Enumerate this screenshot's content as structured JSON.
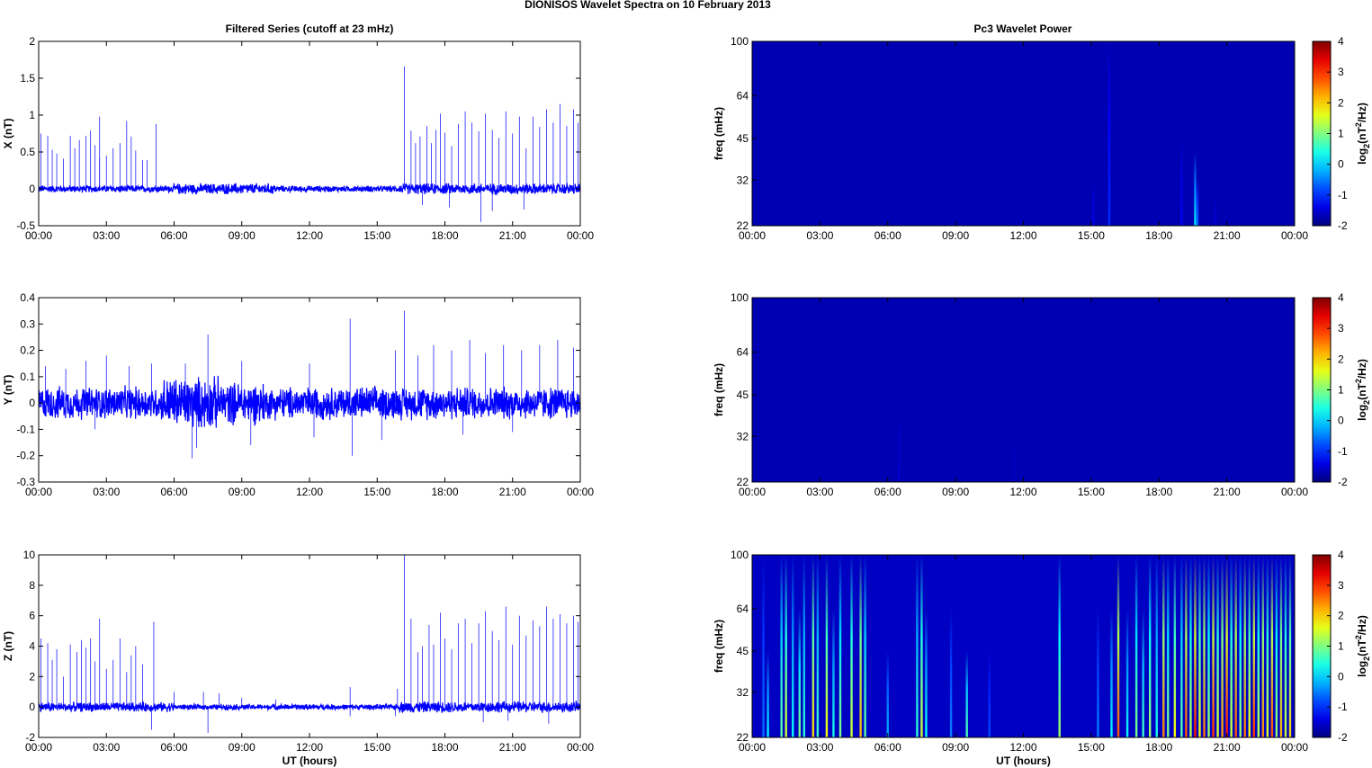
{
  "figure": {
    "title": "DIONISOS Wavelet Spectra on 10 February  2013",
    "left_title": "Filtered Series (cutoff at 23 mHz)",
    "right_title": "Pc3 Wavelet Power",
    "xlabel": "UT (hours)"
  },
  "colors": {
    "series_line": "#0000ff",
    "heatmap_background": "#00008f",
    "axes": "#000000"
  },
  "chart_data": [
    {
      "type": "line",
      "ylabel": "X (nT)",
      "xlabel": "",
      "x_ticks": [
        "00:00",
        "03:00",
        "06:00",
        "09:00",
        "12:00",
        "15:00",
        "18:00",
        "21:00",
        "00:00"
      ],
      "xlim_hours": [
        0,
        24
      ],
      "ylim": [
        -0.5,
        2
      ],
      "y_ticks": [
        -0.5,
        0,
        0.5,
        1,
        1.5,
        2
      ],
      "y_tick_labels": [
        "-0.5",
        "0",
        "0.5",
        "1",
        "1.5",
        "2"
      ],
      "noise_band": [
        {
          "t": [
            0,
            6
          ],
          "amp": 0.04
        },
        {
          "t": [
            6,
            10.5
          ],
          "amp": 0.06
        },
        {
          "t": [
            10.5,
            16
          ],
          "amp": 0.035
        },
        {
          "t": [
            16,
            24
          ],
          "amp": 0.06
        }
      ],
      "spikes": [
        [
          0.1,
          0.75
        ],
        [
          0.4,
          0.72
        ],
        [
          0.6,
          0.53
        ],
        [
          0.8,
          0.48
        ],
        [
          1.1,
          0.41
        ],
        [
          1.4,
          0.72
        ],
        [
          1.6,
          0.55
        ],
        [
          1.8,
          0.66
        ],
        [
          2.1,
          0.72
        ],
        [
          2.3,
          0.79
        ],
        [
          2.5,
          0.59
        ],
        [
          2.7,
          0.42
        ],
        [
          2.7,
          0.98
        ],
        [
          3.0,
          0.45
        ],
        [
          3.3,
          0.55
        ],
        [
          3.6,
          0.62
        ],
        [
          3.9,
          0.92
        ],
        [
          4.1,
          0.71
        ],
        [
          4.3,
          0.52
        ],
        [
          4.6,
          0.39
        ],
        [
          4.8,
          0.39
        ],
        [
          5.2,
          0.88
        ],
        [
          16.2,
          1.66
        ],
        [
          16.5,
          0.79
        ],
        [
          16.7,
          0.62
        ],
        [
          16.9,
          0.71
        ],
        [
          17.2,
          0.85
        ],
        [
          17.4,
          0.62
        ],
        [
          17.6,
          0.8
        ],
        [
          17.8,
          1.02
        ],
        [
          18.0,
          0.76
        ],
        [
          18.3,
          0.58
        ],
        [
          18.6,
          0.88
        ],
        [
          18.9,
          1.05
        ],
        [
          19.2,
          0.9
        ],
        [
          19.5,
          0.78
        ],
        [
          19.8,
          1.02
        ],
        [
          20.1,
          0.8
        ],
        [
          20.4,
          0.69
        ],
        [
          20.7,
          1.05
        ],
        [
          21.0,
          0.75
        ],
        [
          21.3,
          0.98
        ],
        [
          21.6,
          0.55
        ],
        [
          21.9,
          0.98
        ],
        [
          22.2,
          0.84
        ],
        [
          22.5,
          1.08
        ],
        [
          22.8,
          0.9
        ],
        [
          23.1,
          1.15
        ],
        [
          23.4,
          0.85
        ],
        [
          23.7,
          1.08
        ],
        [
          23.9,
          0.9
        ]
      ],
      "neg_spikes": [
        [
          19.6,
          -0.45
        ],
        [
          20.1,
          -0.3
        ],
        [
          18.2,
          -0.25
        ],
        [
          21.5,
          -0.28
        ],
        [
          17.0,
          -0.22
        ]
      ]
    },
    {
      "type": "line",
      "ylabel": "Y (nT)",
      "xlabel": "",
      "x_ticks": [
        "00:00",
        "03:00",
        "06:00",
        "09:00",
        "12:00",
        "15:00",
        "18:00",
        "21:00",
        "00:00"
      ],
      "xlim_hours": [
        0,
        24
      ],
      "ylim": [
        -0.3,
        0.4
      ],
      "y_ticks": [
        -0.3,
        -0.2,
        -0.1,
        0,
        0.1,
        0.2,
        0.3,
        0.4
      ],
      "y_tick_labels": [
        "-0.3",
        "-0.2",
        "-0.1",
        "0",
        "0.1",
        "0.2",
        "0.3",
        "0.4"
      ],
      "noise_band": [
        {
          "t": [
            0,
            5.5
          ],
          "amp": 0.05
        },
        {
          "t": [
            5.5,
            8
          ],
          "amp": 0.08
        },
        {
          "t": [
            8,
            10
          ],
          "amp": 0.065
        },
        {
          "t": [
            10,
            24
          ],
          "amp": 0.05
        }
      ],
      "spikes": [
        [
          0.3,
          0.14
        ],
        [
          1.2,
          0.13
        ],
        [
          2.1,
          0.16
        ],
        [
          3.0,
          0.18
        ],
        [
          4.0,
          0.14
        ],
        [
          5.0,
          0.15
        ],
        [
          6.5,
          0.15
        ],
        [
          7.5,
          0.26
        ],
        [
          9.0,
          0.16
        ],
        [
          12.0,
          0.15
        ],
        [
          13.8,
          0.32
        ],
        [
          15.8,
          0.2
        ],
        [
          16.2,
          0.35
        ],
        [
          16.8,
          0.18
        ],
        [
          17.5,
          0.22
        ],
        [
          18.3,
          0.2
        ],
        [
          19.1,
          0.24
        ],
        [
          19.8,
          0.19
        ],
        [
          20.6,
          0.22
        ],
        [
          21.4,
          0.2
        ],
        [
          22.2,
          0.22
        ],
        [
          23.0,
          0.24
        ],
        [
          23.7,
          0.21
        ]
      ],
      "neg_spikes": [
        [
          6.8,
          -0.21
        ],
        [
          7.0,
          -0.17
        ],
        [
          9.4,
          -0.16
        ],
        [
          12.2,
          -0.13
        ],
        [
          13.9,
          -0.2
        ],
        [
          15.2,
          -0.14
        ],
        [
          2.5,
          -0.1
        ],
        [
          18.8,
          -0.12
        ],
        [
          21.0,
          -0.11
        ]
      ]
    },
    {
      "type": "line",
      "ylabel": "Z (nT)",
      "xlabel": "UT (hours)",
      "x_ticks": [
        "00:00",
        "03:00",
        "06:00",
        "09:00",
        "12:00",
        "15:00",
        "18:00",
        "21:00",
        "00:00"
      ],
      "xlim_hours": [
        0,
        24
      ],
      "ylim": [
        -2,
        10
      ],
      "y_ticks": [
        -2,
        0,
        2,
        4,
        6,
        8,
        10
      ],
      "y_tick_labels": [
        "-2",
        "0",
        "2",
        "4",
        "6",
        "8",
        "10"
      ],
      "noise_band": [
        {
          "t": [
            0,
            6
          ],
          "amp": 0.25
        },
        {
          "t": [
            6,
            16
          ],
          "amp": 0.15
        },
        {
          "t": [
            16,
            24
          ],
          "amp": 0.3
        }
      ],
      "spikes": [
        [
          0.1,
          4.5
        ],
        [
          0.4,
          4.2
        ],
        [
          0.6,
          3.1
        ],
        [
          0.8,
          3.8
        ],
        [
          1.1,
          2.0
        ],
        [
          1.4,
          4.1
        ],
        [
          1.7,
          3.6
        ],
        [
          1.9,
          4.4
        ],
        [
          2.1,
          3.9
        ],
        [
          2.3,
          4.5
        ],
        [
          2.5,
          3.0
        ],
        [
          2.7,
          5.8
        ],
        [
          3.0,
          2.5
        ],
        [
          3.3,
          3.1
        ],
        [
          3.6,
          4.5
        ],
        [
          3.9,
          2.3
        ],
        [
          4.1,
          3.4
        ],
        [
          4.3,
          4.0
        ],
        [
          4.6,
          2.8
        ],
        [
          5.1,
          5.6
        ],
        [
          6.0,
          1.0
        ],
        [
          7.3,
          1.0
        ],
        [
          8.0,
          0.9
        ],
        [
          9.0,
          0.6
        ],
        [
          10.5,
          0.5
        ],
        [
          13.8,
          1.3
        ],
        [
          15.9,
          1.2
        ],
        [
          16.2,
          10.0
        ],
        [
          16.5,
          5.8
        ],
        [
          16.8,
          3.6
        ],
        [
          17.0,
          4.0
        ],
        [
          17.3,
          5.4
        ],
        [
          17.5,
          4.1
        ],
        [
          17.8,
          6.2
        ],
        [
          18.0,
          4.5
        ],
        [
          18.3,
          3.8
        ],
        [
          18.6,
          5.5
        ],
        [
          18.9,
          5.8
        ],
        [
          19.2,
          4.2
        ],
        [
          19.5,
          5.5
        ],
        [
          19.8,
          6.3
        ],
        [
          20.1,
          5.0
        ],
        [
          20.4,
          4.4
        ],
        [
          20.7,
          6.6
        ],
        [
          21.0,
          4.1
        ],
        [
          21.3,
          6.0
        ],
        [
          21.6,
          4.7
        ],
        [
          21.9,
          5.7
        ],
        [
          22.2,
          5.3
        ],
        [
          22.5,
          6.6
        ],
        [
          22.8,
          5.8
        ],
        [
          23.1,
          6.1
        ],
        [
          23.4,
          5.5
        ],
        [
          23.7,
          6.0
        ],
        [
          23.9,
          5.6
        ]
      ],
      "neg_spikes": [
        [
          5.0,
          -1.5
        ],
        [
          7.5,
          -1.7
        ],
        [
          13.8,
          -0.6
        ],
        [
          15.8,
          -0.6
        ],
        [
          19.7,
          -1.0
        ],
        [
          20.8,
          -0.9
        ],
        [
          22.6,
          -1.1
        ]
      ]
    },
    {
      "type": "heatmap",
      "ylabel": "freq (mHz)",
      "xlabel": "",
      "x_ticks": [
        "00:00",
        "03:00",
        "06:00",
        "09:00",
        "12:00",
        "15:00",
        "18:00",
        "21:00",
        "00:00"
      ],
      "xlim_hours": [
        0,
        24
      ],
      "y_scale": "log",
      "ylim": [
        22,
        100
      ],
      "y_ticks": [
        22,
        32,
        45,
        64,
        100
      ],
      "y_tick_labels": [
        "22",
        "32",
        "45",
        "64",
        "100"
      ],
      "colorbar": {
        "label": "log2(nT2/Hz)",
        "label_main": "log",
        "label_sub": "2",
        "label_rest_a": "(nT",
        "label_sup": "2",
        "label_rest_b": "/Hz)",
        "ticks": [
          -2,
          -1,
          0,
          1,
          2,
          3,
          4
        ],
        "tick_labels": [
          "-2",
          "-1",
          "0",
          "1",
          "2",
          "3",
          "4"
        ],
        "range": [
          -2,
          4
        ]
      },
      "background_value": -1.7,
      "streaks": [
        [
          15.1,
          -1.4,
          32
        ],
        [
          15.8,
          -1.0,
          100
        ],
        [
          19.0,
          -1.3,
          45
        ],
        [
          19.6,
          0.1,
          40
        ],
        [
          19.7,
          -0.6,
          32
        ],
        [
          20.5,
          -1.5,
          28
        ]
      ]
    },
    {
      "type": "heatmap",
      "ylabel": "freq (mHz)",
      "xlabel": "",
      "x_ticks": [
        "00:00",
        "03:00",
        "06:00",
        "09:00",
        "12:00",
        "15:00",
        "18:00",
        "21:00",
        "00:00"
      ],
      "xlim_hours": [
        0,
        24
      ],
      "y_scale": "log",
      "ylim": [
        22,
        100
      ],
      "y_ticks": [
        22,
        32,
        45,
        64,
        100
      ],
      "y_tick_labels": [
        "22",
        "32",
        "45",
        "64",
        "100"
      ],
      "colorbar": {
        "label": "log2(nT2/Hz)",
        "label_main": "log",
        "label_sub": "2",
        "label_rest_a": "(nT",
        "label_sup": "2",
        "label_rest_b": "/Hz)",
        "ticks": [
          -2,
          -1,
          0,
          1,
          2,
          3,
          4
        ],
        "tick_labels": [
          "-2",
          "-1",
          "0",
          "1",
          "2",
          "3",
          "4"
        ],
        "range": [
          -2,
          4
        ]
      },
      "background_value": -1.7,
      "streaks": [
        [
          6.5,
          -1.55,
          40
        ],
        [
          11.6,
          -1.6,
          32
        ]
      ]
    },
    {
      "type": "heatmap",
      "ylabel": "freq (mHz)",
      "xlabel": "UT (hours)",
      "x_ticks": [
        "00:00",
        "03:00",
        "06:00",
        "09:00",
        "12:00",
        "15:00",
        "18:00",
        "21:00",
        "00:00"
      ],
      "xlim_hours": [
        0,
        24
      ],
      "y_scale": "log",
      "ylim": [
        22,
        100
      ],
      "y_ticks": [
        22,
        32,
        45,
        64,
        100
      ],
      "y_tick_labels": [
        "22",
        "32",
        "45",
        "64",
        "100"
      ],
      "colorbar": {
        "label": "log2(nT2/Hz)",
        "label_main": "log",
        "label_sub": "2",
        "label_rest_a": "(nT",
        "label_sup": "2",
        "label_rest_b": "/Hz)",
        "ticks": [
          -2,
          -1,
          0,
          1,
          2,
          3,
          4
        ],
        "tick_labels": [
          "-2",
          "-1",
          "0",
          "1",
          "2",
          "3",
          "4"
        ],
        "range": [
          -2,
          4
        ]
      },
      "background_value": -1.6,
      "streaks": [
        [
          0.5,
          -0.6,
          100
        ],
        [
          0.7,
          0.2,
          45
        ],
        [
          1.3,
          0.8,
          100
        ],
        [
          1.5,
          1.5,
          100
        ],
        [
          1.8,
          0.3,
          100
        ],
        [
          2.1,
          1.0,
          64
        ],
        [
          2.3,
          0.5,
          100
        ],
        [
          2.7,
          2.0,
          100
        ],
        [
          2.9,
          0.6,
          100
        ],
        [
          3.3,
          1.8,
          100
        ],
        [
          3.6,
          0.4,
          64
        ],
        [
          3.9,
          1.0,
          100
        ],
        [
          4.4,
          1.5,
          100
        ],
        [
          4.8,
          2.2,
          100
        ],
        [
          5.0,
          0.8,
          100
        ],
        [
          6.0,
          -0.2,
          45
        ],
        [
          7.3,
          0.5,
          100
        ],
        [
          7.5,
          1.5,
          100
        ],
        [
          7.7,
          0.3,
          64
        ],
        [
          8.8,
          -0.5,
          64
        ],
        [
          9.5,
          0.7,
          45
        ],
        [
          10.5,
          -0.8,
          45
        ],
        [
          13.6,
          1.2,
          100
        ],
        [
          15.3,
          -0.5,
          64
        ],
        [
          15.9,
          0.2,
          64
        ],
        [
          16.2,
          2.8,
          100
        ],
        [
          16.6,
          0.3,
          64
        ],
        [
          17.0,
          1.0,
          100
        ],
        [
          17.3,
          0.6,
          64
        ],
        [
          17.6,
          1.2,
          100
        ],
        [
          17.9,
          0.4,
          100
        ],
        [
          18.2,
          2.5,
          100
        ],
        [
          18.4,
          1.0,
          100
        ],
        [
          18.7,
          1.8,
          100
        ],
        [
          19.0,
          0.8,
          100
        ],
        [
          19.2,
          2.8,
          100
        ],
        [
          19.4,
          1.4,
          100
        ],
        [
          19.6,
          3.2,
          100
        ],
        [
          19.8,
          1.8,
          100
        ],
        [
          20.0,
          2.6,
          100
        ],
        [
          20.2,
          1.2,
          100
        ],
        [
          20.4,
          3.0,
          100
        ],
        [
          20.6,
          1.6,
          100
        ],
        [
          20.8,
          2.4,
          100
        ],
        [
          21.0,
          3.2,
          100
        ],
        [
          21.2,
          1.5,
          100
        ],
        [
          21.4,
          2.8,
          100
        ],
        [
          21.6,
          1.2,
          100
        ],
        [
          21.8,
          2.6,
          100
        ],
        [
          22.0,
          1.8,
          100
        ],
        [
          22.2,
          3.0,
          100
        ],
        [
          22.4,
          1.4,
          100
        ],
        [
          22.6,
          2.5,
          100
        ],
        [
          22.8,
          1.6,
          100
        ],
        [
          23.0,
          2.8,
          100
        ],
        [
          23.2,
          1.2,
          100
        ],
        [
          23.4,
          2.2,
          100
        ],
        [
          23.6,
          1.5,
          100
        ],
        [
          23.8,
          2.0,
          100
        ]
      ]
    }
  ]
}
